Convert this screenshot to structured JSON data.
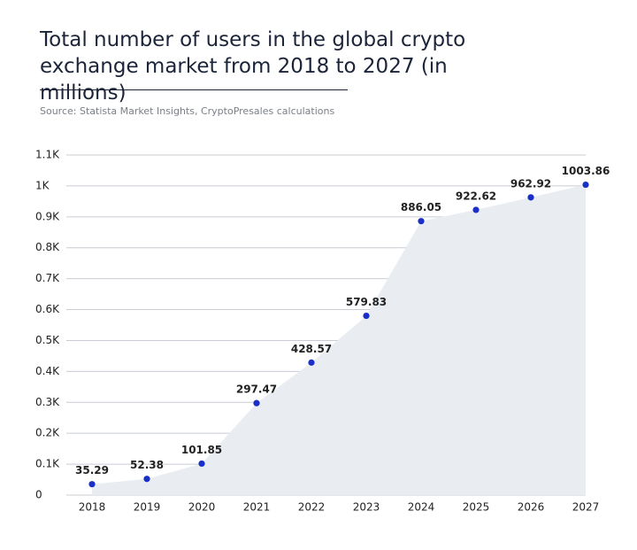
{
  "chart_data": {
    "type": "area",
    "title": "Total number of users in the global crypto exchange market from 2018 to 2027 (in millions)",
    "subtitle": "Source: Statista Market Insights, CryptoPresales calculations",
    "categories": [
      "2018",
      "2019",
      "2020",
      "2021",
      "2022",
      "2023",
      "2024",
      "2025",
      "2026",
      "2027"
    ],
    "values": [
      35.29,
      52.38,
      101.85,
      297.47,
      428.57,
      579.83,
      886.05,
      922.62,
      962.92,
      1003.86
    ],
    "color": "#1a2fc7",
    "area_color": "#e9edf2",
    "ylim": [
      0,
      1100
    ],
    "yticks": [
      0,
      {
        "value": 100,
        "label": "0.1K"
      },
      {
        "value": 200,
        "label": "0.2K"
      },
      {
        "value": 300,
        "label": "0.3K"
      },
      {
        "value": 400,
        "label": "0.4K"
      },
      {
        "value": 500,
        "label": "0.5K"
      },
      {
        "value": 600,
        "label": "0.6K"
      },
      {
        "value": 700,
        "label": "0.7K"
      },
      {
        "value": 800,
        "label": "0.8K"
      },
      {
        "value": 900,
        "label": "0.9K"
      },
      {
        "value": 1000,
        "label": "1K"
      },
      {
        "value": 1100,
        "label": "1.1K"
      }
    ],
    "grid": true
  }
}
